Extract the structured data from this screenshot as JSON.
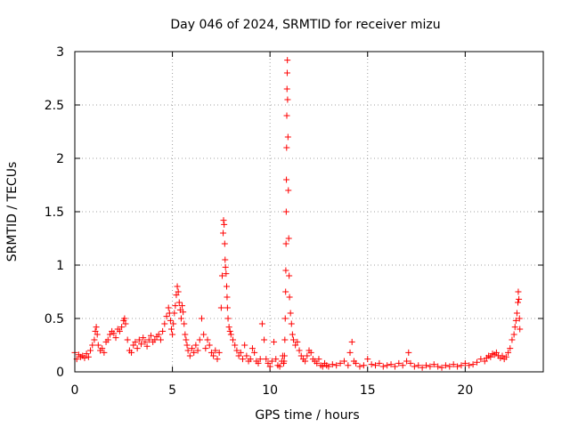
{
  "chart_data": {
    "type": "scatter",
    "title": "Day 046 of 2024, SRMTID for receiver mizu",
    "xlabel": "GPS time / hours",
    "ylabel": "SRMTID / TECUs",
    "xlim": [
      0,
      24
    ],
    "ylim": [
      0,
      3
    ],
    "xticks": [
      0,
      5,
      10,
      15,
      20
    ],
    "xtick_labels": [
      "0",
      "5",
      "10",
      "15",
      "20"
    ],
    "yticks": [
      0,
      0.5,
      1,
      1.5,
      2,
      2.5,
      3
    ],
    "ytick_labels": [
      "0",
      "0.5",
      "1",
      "1.5",
      "2",
      "2.5",
      "3"
    ],
    "grid": true,
    "marker": "+",
    "color": "#ff0000",
    "series": [
      {
        "name": "SRMTID",
        "x": [
          0.0,
          0.1,
          0.2,
          0.3,
          0.4,
          0.5,
          0.6,
          0.7,
          0.8,
          0.9,
          1.0,
          1.05,
          1.1,
          1.15,
          1.2,
          1.3,
          1.4,
          1.5,
          1.6,
          1.7,
          1.8,
          1.9,
          2.0,
          2.1,
          2.2,
          2.3,
          2.4,
          2.5,
          2.55,
          2.6,
          2.7,
          2.8,
          2.9,
          3.0,
          3.1,
          3.2,
          3.3,
          3.4,
          3.5,
          3.6,
          3.7,
          3.8,
          3.9,
          4.0,
          4.1,
          4.2,
          4.3,
          4.4,
          4.5,
          4.6,
          4.7,
          4.8,
          4.85,
          4.9,
          4.95,
          5.0,
          5.05,
          5.1,
          5.15,
          5.2,
          5.25,
          5.3,
          5.35,
          5.4,
          5.45,
          5.5,
          5.55,
          5.6,
          5.65,
          5.7,
          5.75,
          5.8,
          5.9,
          6.0,
          6.1,
          6.2,
          6.3,
          6.4,
          6.5,
          6.6,
          6.7,
          6.8,
          6.9,
          7.0,
          7.1,
          7.2,
          7.3,
          7.4,
          7.5,
          7.55,
          7.6,
          7.62,
          7.65,
          7.68,
          7.7,
          7.72,
          7.75,
          7.78,
          7.8,
          7.82,
          7.85,
          7.9,
          7.95,
          8.0,
          8.1,
          8.2,
          8.3,
          8.4,
          8.5,
          8.6,
          8.7,
          8.8,
          8.9,
          9.0,
          9.1,
          9.2,
          9.3,
          9.4,
          9.5,
          9.6,
          9.7,
          9.8,
          9.9,
          10.0,
          10.1,
          10.2,
          10.3,
          10.4,
          10.5,
          10.6,
          10.65,
          10.7,
          10.72,
          10.74,
          10.76,
          10.78,
          10.8,
          10.81,
          10.82,
          10.83,
          10.84,
          10.85,
          10.86,
          10.87,
          10.88,
          10.89,
          10.9,
          10.92,
          10.94,
          10.96,
          10.98,
          11.0,
          11.05,
          11.1,
          11.15,
          11.2,
          11.3,
          11.4,
          11.5,
          11.6,
          11.7,
          11.8,
          11.9,
          12.0,
          12.1,
          12.2,
          12.3,
          12.4,
          12.5,
          12.6,
          12.7,
          12.8,
          12.9,
          13.0,
          13.2,
          13.4,
          13.6,
          13.8,
          14.0,
          14.1,
          14.2,
          14.3,
          14.4,
          14.6,
          14.8,
          15.0,
          15.2,
          15.4,
          15.6,
          15.8,
          16.0,
          16.2,
          16.4,
          16.6,
          16.8,
          17.0,
          17.1,
          17.2,
          17.4,
          17.6,
          17.8,
          18.0,
          18.2,
          18.4,
          18.6,
          18.8,
          19.0,
          19.2,
          19.4,
          19.6,
          19.8,
          20.0,
          20.2,
          20.4,
          20.6,
          20.8,
          21.0,
          21.1,
          21.2,
          21.3,
          21.4,
          21.5,
          21.6,
          21.7,
          21.8,
          21.9,
          22.0,
          22.1,
          22.2,
          22.3,
          22.4,
          22.5,
          22.55,
          22.6,
          22.65,
          22.7,
          22.72,
          22.75,
          22.78,
          22.8
        ],
        "y": [
          0.18,
          0.12,
          0.16,
          0.14,
          0.15,
          0.13,
          0.17,
          0.14,
          0.2,
          0.25,
          0.3,
          0.38,
          0.42,
          0.35,
          0.25,
          0.2,
          0.22,
          0.18,
          0.28,
          0.3,
          0.35,
          0.38,
          0.36,
          0.32,
          0.4,
          0.38,
          0.42,
          0.48,
          0.5,
          0.45,
          0.3,
          0.2,
          0.18,
          0.25,
          0.28,
          0.22,
          0.3,
          0.26,
          0.32,
          0.28,
          0.24,
          0.3,
          0.34,
          0.28,
          0.3,
          0.33,
          0.35,
          0.3,
          0.38,
          0.45,
          0.52,
          0.6,
          0.55,
          0.48,
          0.4,
          0.35,
          0.45,
          0.55,
          0.62,
          0.72,
          0.8,
          0.75,
          0.65,
          0.58,
          0.5,
          0.62,
          0.56,
          0.45,
          0.35,
          0.3,
          0.25,
          0.2,
          0.15,
          0.22,
          0.18,
          0.25,
          0.2,
          0.3,
          0.5,
          0.35,
          0.22,
          0.3,
          0.25,
          0.18,
          0.15,
          0.2,
          0.12,
          0.18,
          0.6,
          0.9,
          1.3,
          1.42,
          1.38,
          1.2,
          1.05,
          0.98,
          0.92,
          0.8,
          0.7,
          0.6,
          0.5,
          0.42,
          0.38,
          0.35,
          0.3,
          0.25,
          0.2,
          0.15,
          0.18,
          0.12,
          0.25,
          0.15,
          0.1,
          0.12,
          0.22,
          0.18,
          0.1,
          0.08,
          0.12,
          0.45,
          0.3,
          0.12,
          0.08,
          0.05,
          0.1,
          0.28,
          0.12,
          0.06,
          0.05,
          0.1,
          0.15,
          0.08,
          0.1,
          0.15,
          0.3,
          0.5,
          0.75,
          0.95,
          1.2,
          1.5,
          1.8,
          2.1,
          2.4,
          2.65,
          2.8,
          2.92,
          2.55,
          2.2,
          1.7,
          1.25,
          0.9,
          0.7,
          0.55,
          0.45,
          0.35,
          0.3,
          0.25,
          0.28,
          0.2,
          0.15,
          0.12,
          0.1,
          0.15,
          0.2,
          0.18,
          0.12,
          0.1,
          0.08,
          0.12,
          0.06,
          0.05,
          0.08,
          0.06,
          0.05,
          0.07,
          0.06,
          0.08,
          0.1,
          0.06,
          0.18,
          0.28,
          0.1,
          0.08,
          0.05,
          0.06,
          0.12,
          0.07,
          0.06,
          0.08,
          0.05,
          0.06,
          0.07,
          0.05,
          0.08,
          0.06,
          0.1,
          0.18,
          0.08,
          0.05,
          0.06,
          0.04,
          0.06,
          0.05,
          0.07,
          0.05,
          0.04,
          0.06,
          0.05,
          0.07,
          0.05,
          0.06,
          0.08,
          0.06,
          0.07,
          0.09,
          0.12,
          0.1,
          0.13,
          0.15,
          0.14,
          0.17,
          0.16,
          0.18,
          0.15,
          0.13,
          0.15,
          0.12,
          0.14,
          0.18,
          0.22,
          0.3,
          0.35,
          0.42,
          0.48,
          0.55,
          0.65,
          0.75,
          0.68,
          0.5,
          0.4
        ]
      }
    ]
  }
}
